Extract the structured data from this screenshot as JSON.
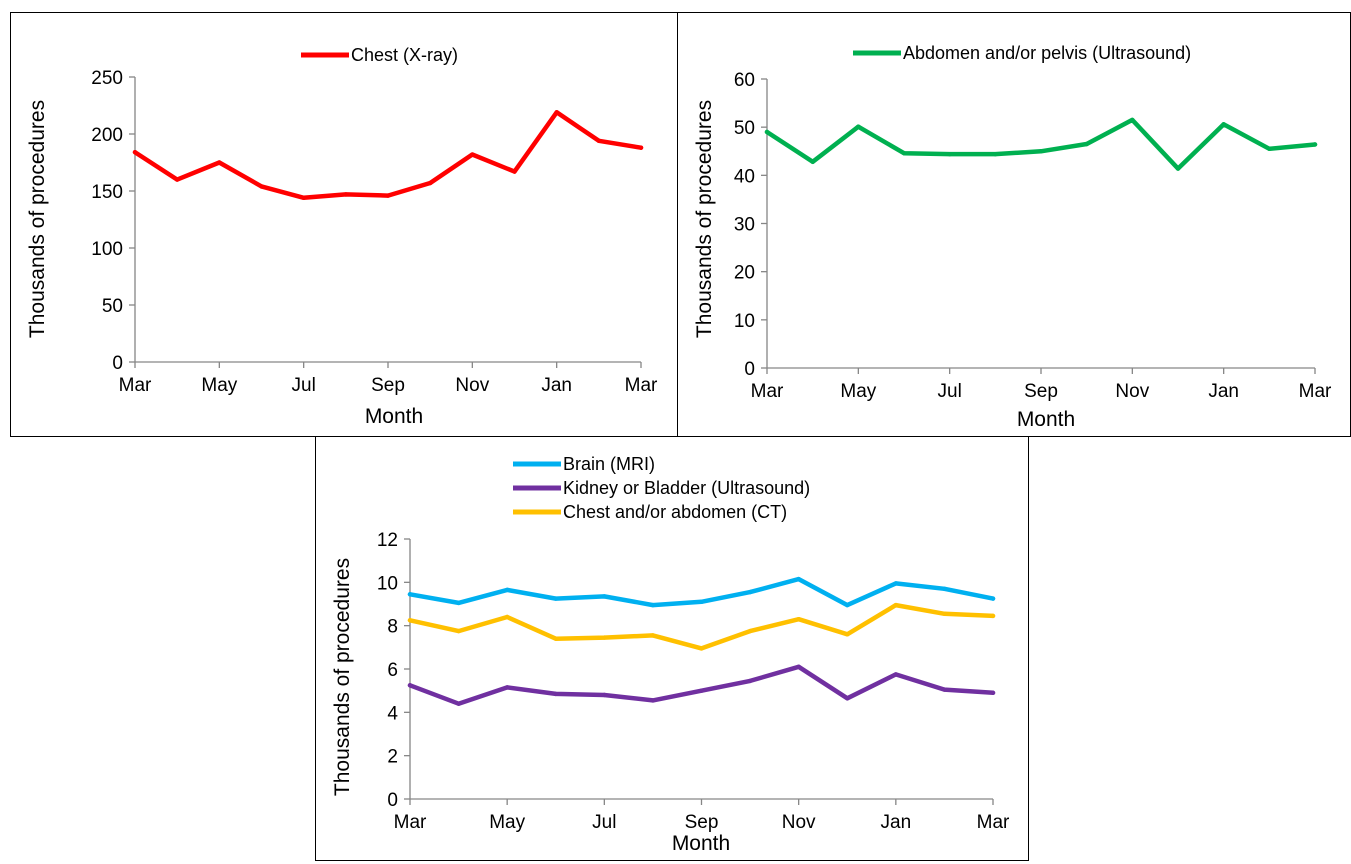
{
  "chart_data": [
    {
      "type": "line",
      "x": [
        "Mar",
        "Apr",
        "May",
        "Jun",
        "Jul",
        "Aug",
        "Sep",
        "Oct",
        "Nov",
        "Dec",
        "Jan",
        "Feb",
        "Mar"
      ],
      "x_tick_labels": [
        "Mar",
        "May",
        "Jul",
        "Sep",
        "Nov",
        "Jan",
        "Mar"
      ],
      "xlabel": "Month",
      "ylabel": "Thousands of procedures",
      "ylim": [
        0,
        250
      ],
      "y_ticks": [
        0,
        50,
        100,
        150,
        200,
        250
      ],
      "legend_position": "top",
      "series": [
        {
          "name": "Chest (X-ray)",
          "color": "#ff0000",
          "values": [
            184,
            160,
            175,
            154,
            144,
            147,
            146,
            157,
            182,
            167,
            219,
            194,
            188
          ]
        }
      ]
    },
    {
      "type": "line",
      "x": [
        "Mar",
        "Apr",
        "May",
        "Jun",
        "Jul",
        "Aug",
        "Sep",
        "Oct",
        "Nov",
        "Dec",
        "Jan",
        "Feb",
        "Mar"
      ],
      "x_tick_labels": [
        "Mar",
        "May",
        "Jul",
        "Sep",
        "Nov",
        "Jan",
        "Mar"
      ],
      "xlabel": "Month",
      "ylabel": "Thousands of procedures",
      "ylim": [
        0,
        60
      ],
      "y_ticks": [
        0,
        10,
        20,
        30,
        40,
        50,
        60
      ],
      "legend_position": "top",
      "series": [
        {
          "name": "Abdomen and/or pelvis (Ultrasound)",
          "color": "#00b050",
          "values": [
            49,
            42.8,
            50.1,
            44.6,
            44.4,
            44.4,
            45,
            46.5,
            51.5,
            41.4,
            50.6,
            45.5,
            46.4
          ]
        }
      ]
    },
    {
      "type": "line",
      "x": [
        "Mar",
        "Apr",
        "May",
        "Jun",
        "Jul",
        "Aug",
        "Sep",
        "Oct",
        "Nov",
        "Dec",
        "Jan",
        "Feb",
        "Mar"
      ],
      "x_tick_labels": [
        "Mar",
        "May",
        "Jul",
        "Sep",
        "Nov",
        "Jan",
        "Mar"
      ],
      "xlabel": "Month",
      "ylabel": "Thousands of procedures",
      "ylim": [
        0,
        12
      ],
      "y_ticks": [
        0,
        2,
        4,
        6,
        8,
        10,
        12
      ],
      "legend_position": "top",
      "series": [
        {
          "name": "Brain (MRI)",
          "color": "#00b0f0",
          "values": [
            9.45,
            9.05,
            9.65,
            9.25,
            9.35,
            8.95,
            9.1,
            9.55,
            10.15,
            8.95,
            9.95,
            9.7,
            9.25
          ]
        },
        {
          "name": "Kidney or Bladder (Ultrasound)",
          "color": "#7030a0",
          "values": [
            5.25,
            4.4,
            5.15,
            4.85,
            4.8,
            4.55,
            5.0,
            5.45,
            6.1,
            4.65,
            5.75,
            5.05,
            4.9
          ]
        },
        {
          "name": "Chest and/or abdomen (CT)",
          "color": "#ffc000",
          "values": [
            8.25,
            7.75,
            8.4,
            7.4,
            7.45,
            7.55,
            6.95,
            7.75,
            8.3,
            7.6,
            8.95,
            8.55,
            8.45
          ]
        }
      ]
    }
  ]
}
